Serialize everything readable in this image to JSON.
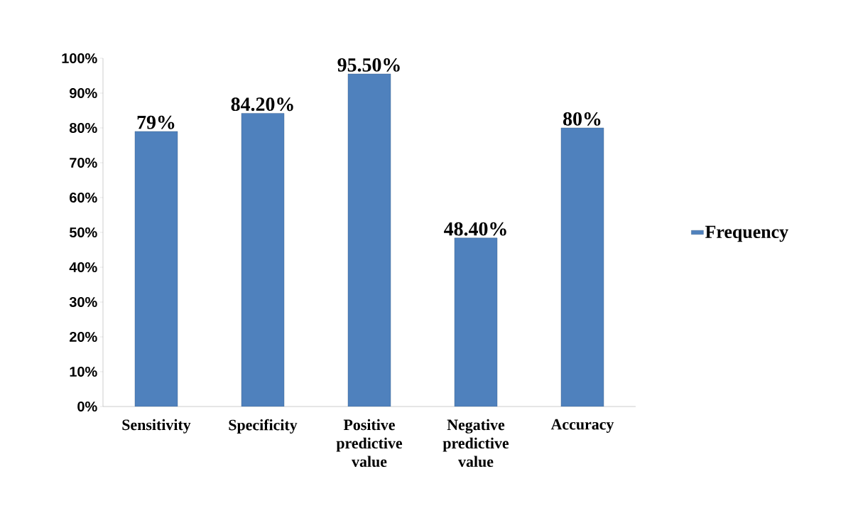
{
  "chart_data": {
    "type": "bar",
    "categories": [
      "Sensitivity",
      "Specificity",
      "Positive predictive value",
      "Negative predictive value",
      "Accuracy"
    ],
    "series": [
      {
        "name": "Frequency",
        "color": "#4f81bd",
        "values": [
          79,
          84.2,
          95.5,
          48.4,
          80
        ],
        "value_labels": [
          "79%",
          "84.20%",
          "95.50%",
          "48.40%",
          "80%"
        ]
      }
    ],
    "ylim": [
      0,
      100
    ],
    "yticks": [
      {
        "value": 0,
        "label": "0%"
      },
      {
        "value": 10,
        "label": "10%"
      },
      {
        "value": 20,
        "label": "20%"
      },
      {
        "value": 30,
        "label": "30%"
      },
      {
        "value": 40,
        "label": "40%"
      },
      {
        "value": 50,
        "label": "50%"
      },
      {
        "value": 60,
        "label": "60%"
      },
      {
        "value": 70,
        "label": "70%"
      },
      {
        "value": 80,
        "label": "80%"
      },
      {
        "value": 90,
        "label": "90%"
      },
      {
        "value": 100,
        "label": "100%"
      }
    ],
    "grid": false,
    "legend": "right"
  }
}
